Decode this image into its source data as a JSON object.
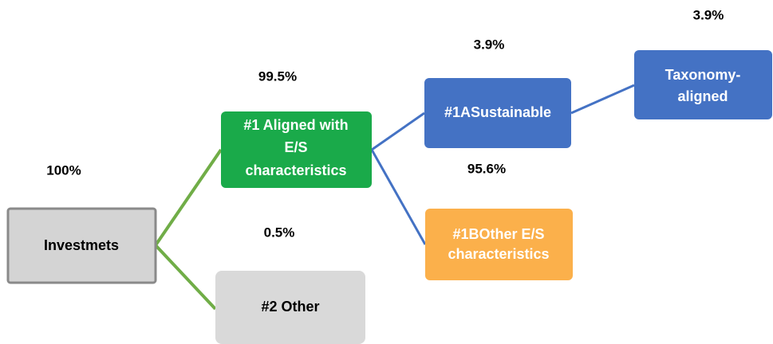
{
  "nodes": [
    {
      "label": [
        "Investmets"
      ],
      "share": "100%"
    },
    {
      "label": [
        "#1 Aligned with",
        "E/S",
        "characteristics"
      ],
      "share": "99.5%"
    },
    {
      "label": [
        "#2 Other"
      ],
      "share": "0.5%"
    },
    {
      "label": [
        "#1ASustainable"
      ],
      "share": "3.9%"
    },
    {
      "label": [
        "#1BOther E/S",
        "characteristics"
      ],
      "share": "95.6%"
    },
    {
      "label": [
        "Taxonomy-",
        "aligned"
      ],
      "share": "3.9%"
    }
  ]
}
